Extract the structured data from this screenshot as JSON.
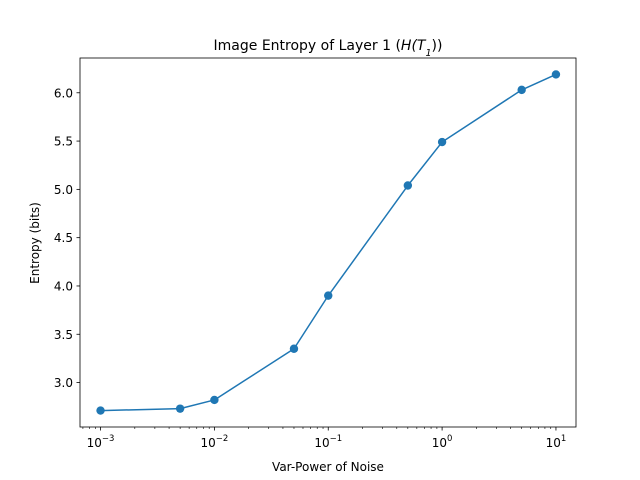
{
  "chart_data": {
    "type": "line",
    "title_prefix": "Image Entropy of Layer 1 (",
    "title_math": "H(T",
    "title_sub": "1",
    "title_suffix": "))",
    "xlabel": "Var-Power of Noise",
    "ylabel": "Entropy (bits)",
    "xscale": "log",
    "xlim": [
      0.00066,
      15
    ],
    "ylim": [
      2.54,
      6.36
    ],
    "grid": false,
    "color": "#1f77b4",
    "marker": "circle",
    "x_ticks": [
      {
        "value": 0.001,
        "base": "10",
        "exp": "−3"
      },
      {
        "value": 0.01,
        "base": "10",
        "exp": "−2"
      },
      {
        "value": 0.1,
        "base": "10",
        "exp": "−1"
      },
      {
        "value": 1,
        "base": "10",
        "exp": "0"
      },
      {
        "value": 10,
        "base": "10",
        "exp": "1"
      }
    ],
    "y_ticks": [
      "3.0",
      "3.5",
      "4.0",
      "4.5",
      "5.0",
      "5.5",
      "6.0"
    ],
    "x": [
      0.001,
      0.005,
      0.01,
      0.05,
      0.1,
      0.5,
      1,
      5,
      10
    ],
    "y": [
      2.71,
      2.73,
      2.82,
      3.35,
      3.9,
      5.04,
      5.49,
      6.03,
      6.19
    ]
  }
}
